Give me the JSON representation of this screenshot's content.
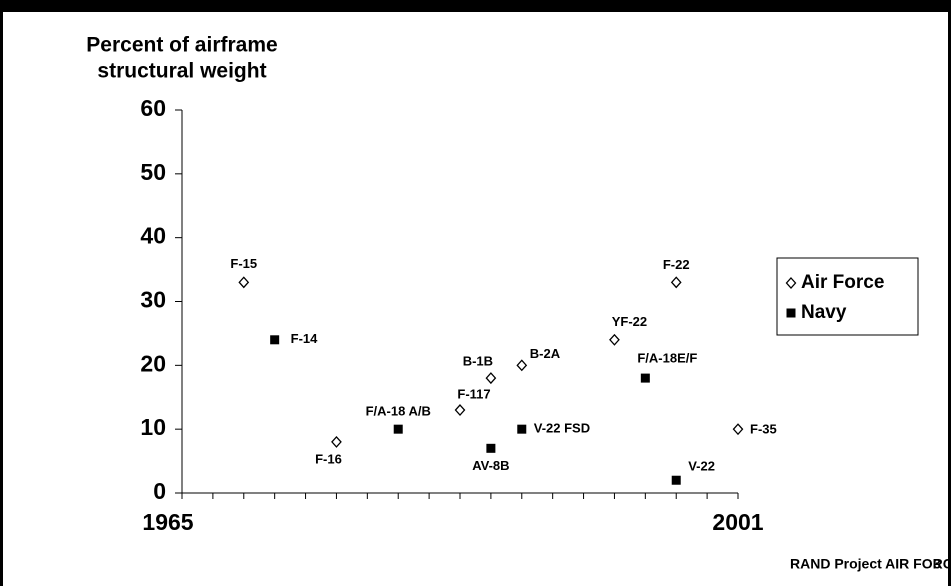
{
  "chart_data": {
    "type": "scatter",
    "y_label": [
      "Percent of airframe",
      "structural weight"
    ],
    "xlim": [
      1965,
      2001
    ],
    "xticks": [
      1965,
      2001
    ],
    "x_minor_ticks": [
      1967,
      1969,
      1971,
      1973,
      1975,
      1977,
      1979,
      1981,
      1983,
      1985,
      1987,
      1989,
      1991,
      1993,
      1995,
      1997,
      1999
    ],
    "ylim": [
      0,
      60
    ],
    "yticks": [
      0,
      10,
      20,
      30,
      40,
      50,
      60
    ],
    "series": [
      {
        "name": "Air Force",
        "marker": "diamond",
        "color": "#000000",
        "labels": [
          "F-15",
          "F-16",
          "F-117",
          "B-1B",
          "B-2A",
          "YF-22",
          "F-22",
          "F-35"
        ],
        "x": [
          1969,
          1975,
          1983,
          1985,
          1987,
          1993,
          1997,
          2001
        ],
        "values": [
          33,
          8,
          13,
          18,
          20,
          24,
          33,
          10
        ]
      },
      {
        "name": "Navy",
        "marker": "square",
        "color": "#000000",
        "labels": [
          "F-14",
          "F/A-18 A/B",
          "AV-8B",
          "V-22 FSD",
          "F/A-18E/F",
          "V-22"
        ],
        "x": [
          1971,
          1979,
          1985,
          1987,
          1995,
          1997
        ],
        "values": [
          24,
          10,
          7,
          10,
          18,
          2
        ]
      }
    ],
    "footer": {
      "source": "RAND Project AIR FORCE",
      "page": "3"
    }
  }
}
